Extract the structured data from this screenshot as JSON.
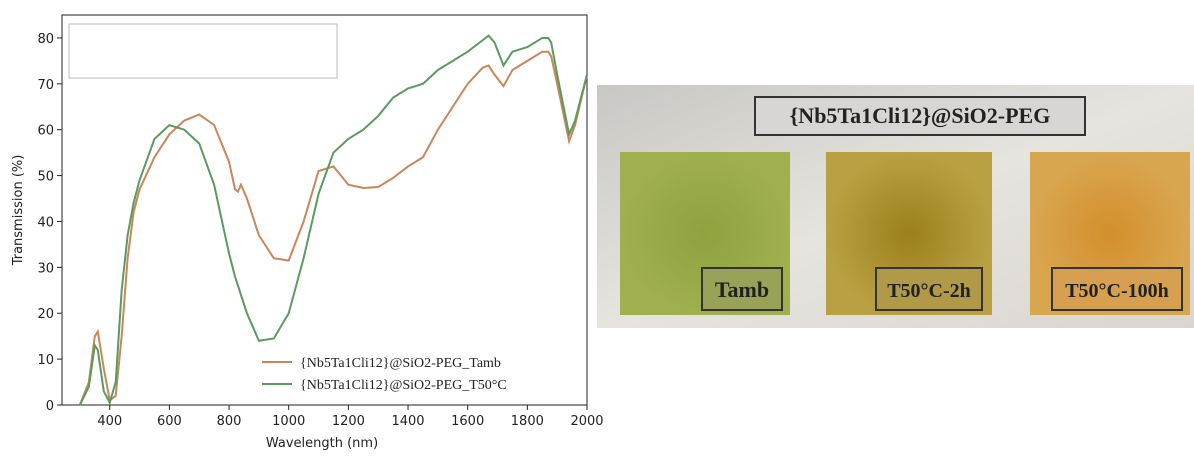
{
  "chart_data": {
    "type": "line",
    "xlabel": "Wavelength (nm)",
    "ylabel": "Transmission (%)",
    "x": [
      300,
      330,
      350,
      360,
      380,
      400,
      420,
      440,
      460,
      480,
      500,
      550,
      600,
      650,
      700,
      750,
      800,
      820,
      830,
      840,
      860,
      900,
      950,
      1000,
      1050,
      1100,
      1150,
      1200,
      1250,
      1300,
      1350,
      1400,
      1450,
      1500,
      1550,
      1600,
      1650,
      1670,
      1690,
      1720,
      1750,
      1800,
      1850,
      1870,
      1880,
      1900,
      1940,
      1960,
      2000
    ],
    "series": [
      {
        "name": "{Nb5Ta1Cli12}@SiO2-PEG_Tamb",
        "color": "#c8865a",
        "values": [
          0,
          5,
          15,
          16,
          8,
          1,
          2,
          15,
          32,
          42,
          47,
          54,
          59,
          62,
          63.3,
          61,
          53,
          47,
          46.5,
          48,
          45,
          37,
          32,
          31.5,
          40,
          51,
          52,
          48,
          47.3,
          47.5,
          49.5,
          52,
          54,
          60,
          65,
          70,
          73.5,
          74,
          72,
          69.5,
          73,
          75,
          77,
          77,
          76,
          70,
          57.5,
          61,
          72
        ]
      },
      {
        "name": "{Nb5Ta1Cli12}@SiO2-PEG_T50°C",
        "color": "#5b9a5e",
        "values": [
          0,
          4,
          13,
          12,
          3,
          0.5,
          5,
          25,
          37,
          44,
          49,
          58,
          61,
          60,
          57,
          48,
          33,
          28,
          26,
          24,
          20,
          14,
          14.5,
          20,
          32,
          46,
          55,
          58,
          60,
          63,
          67,
          69,
          70,
          73,
          75,
          77,
          79.5,
          80.5,
          79,
          74,
          77,
          78,
          80,
          80,
          79,
          72,
          59,
          62,
          72
        ]
      }
    ],
    "xlim": [
      240,
      2000
    ],
    "xticks": [
      400,
      600,
      800,
      1000,
      1200,
      1400,
      1600,
      1800,
      2000
    ],
    "ylim": [
      0,
      85
    ],
    "yticks": [
      0,
      10,
      20,
      30,
      40,
      50,
      60,
      70,
      80
    ]
  },
  "photo": {
    "title": "{Nb5Ta1Cli12}@SiO2-PEG",
    "labels": [
      "Tamb",
      "T50°C-2h",
      "T50°C-100h"
    ]
  }
}
